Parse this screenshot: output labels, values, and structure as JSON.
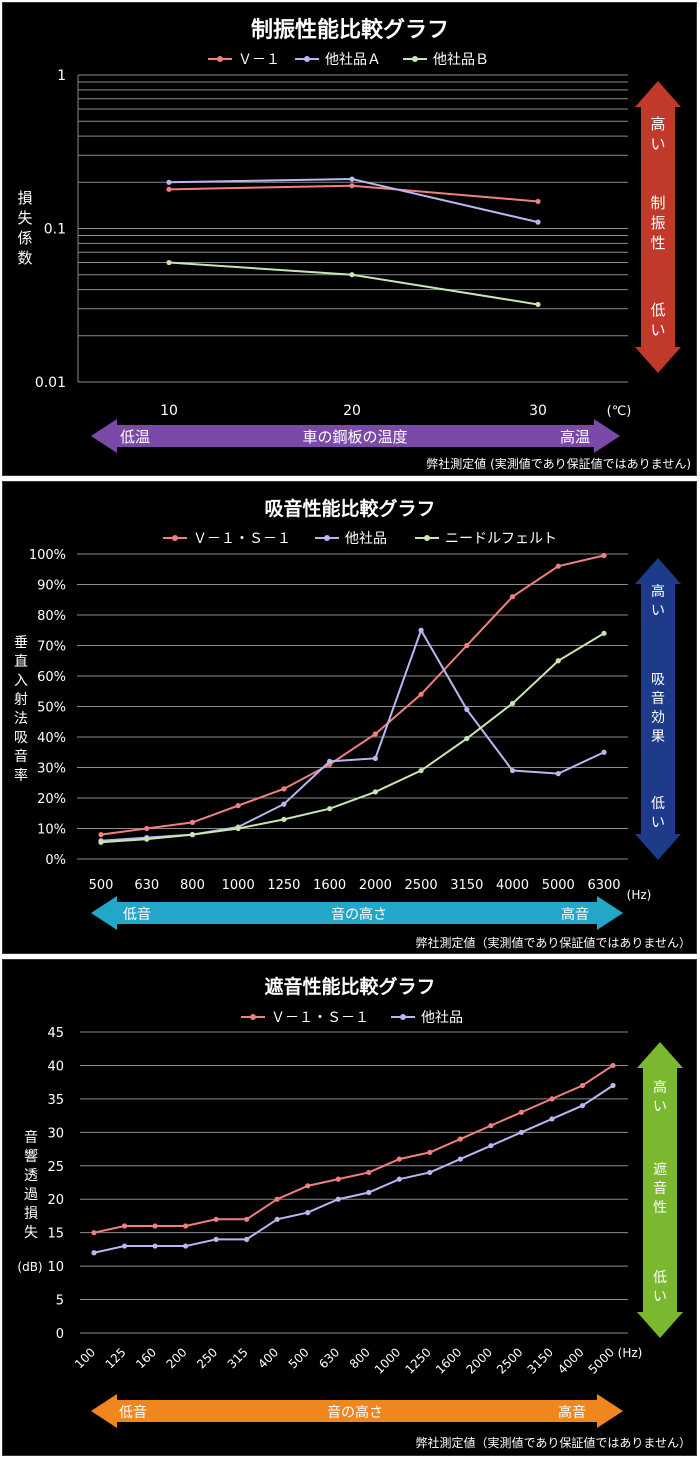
{
  "chart_data": [
    {
      "id": "damping",
      "type": "line",
      "title": "制振性能比較グラフ",
      "y_scale": "log",
      "ylim": [
        0.01,
        1
      ],
      "y_ticks": [
        {
          "v": 1,
          "label": "1"
        },
        {
          "v": 0.1,
          "label": "0.1"
        },
        {
          "v": 0.01,
          "label": "0.01"
        }
      ],
      "ylabel": "損失係数",
      "x_unit": "(℃)",
      "x": [
        10,
        20,
        30
      ],
      "x_labels": [
        "10",
        "20",
        "30"
      ],
      "series": [
        {
          "name": "Ｖ－１",
          "color": "#f08080",
          "values": [
            0.18,
            0.19,
            0.15
          ]
        },
        {
          "name": "他社品Ａ",
          "color": "#b8b8f0",
          "values": [
            0.2,
            0.21,
            0.11
          ]
        },
        {
          "name": "他社品Ｂ",
          "color": "#c8e6b0",
          "values": [
            0.06,
            0.05,
            0.032
          ]
        }
      ],
      "legend_position": "top",
      "grid": true,
      "arrow_x": {
        "left": "低温",
        "center": "車の鋼板の温度",
        "right": "高温",
        "color": "#7b4aa8"
      },
      "arrow_y": {
        "top": "高い",
        "center": "制振性",
        "bottom": "低い",
        "color": "#c0392b"
      },
      "note": "弊社測定値 (実測値であり保証値ではありません)"
    },
    {
      "id": "absorption",
      "type": "line",
      "title": "吸音性能比較グラフ",
      "ylim": [
        0,
        100
      ],
      "y_ticks": [
        {
          "v": 0,
          "label": "0%"
        },
        {
          "v": 10,
          "label": "10%"
        },
        {
          "v": 20,
          "label": "20%"
        },
        {
          "v": 30,
          "label": "30%"
        },
        {
          "v": 40,
          "label": "40%"
        },
        {
          "v": 50,
          "label": "50%"
        },
        {
          "v": 60,
          "label": "60%"
        },
        {
          "v": 70,
          "label": "70%"
        },
        {
          "v": 80,
          "label": "80%"
        },
        {
          "v": 90,
          "label": "90%"
        },
        {
          "v": 100,
          "label": "100%"
        }
      ],
      "ylabel": "垂直入射法吸音率",
      "x_unit": "(Hz)",
      "categories": [
        "500",
        "630",
        "800",
        "1000",
        "1250",
        "1600",
        "2000",
        "2500",
        "3150",
        "4000",
        "5000",
        "6300"
      ],
      "series": [
        {
          "name": "Ｖ－１・Ｓ－１",
          "color": "#f08080",
          "values": [
            8,
            10,
            12,
            17.5,
            23,
            31,
            41,
            54,
            70,
            86,
            96,
            99.5
          ]
        },
        {
          "name": "他社品",
          "color": "#b8b8f0",
          "values": [
            6,
            7,
            8,
            10.5,
            18,
            32,
            33,
            75,
            49,
            29,
            28,
            35
          ]
        },
        {
          "name": "ニードルフェルト",
          "color": "#c8e6b0",
          "values": [
            5.5,
            6.5,
            8,
            10,
            13,
            16.5,
            22,
            29,
            39.5,
            51,
            65,
            74
          ]
        }
      ],
      "legend_position": "top",
      "grid": true,
      "arrow_x": {
        "left": "低音",
        "center": "音の高さ",
        "right": "高音",
        "color": "#22a7c8"
      },
      "arrow_y": {
        "top": "高い",
        "center": "吸音効果",
        "bottom": "低い",
        "color": "#1e3b8a"
      },
      "note": "弊社測定値（実測値であり保証値ではありません）"
    },
    {
      "id": "insulation",
      "type": "line",
      "title": "遮音性能比較グラフ",
      "ylim": [
        0,
        45
      ],
      "y_ticks": [
        {
          "v": 0,
          "label": "0"
        },
        {
          "v": 5,
          "label": "5"
        },
        {
          "v": 10,
          "label": "10"
        },
        {
          "v": 15,
          "label": "15"
        },
        {
          "v": 20,
          "label": "20"
        },
        {
          "v": 25,
          "label": "25"
        },
        {
          "v": 30,
          "label": "30"
        },
        {
          "v": 35,
          "label": "35"
        },
        {
          "v": 40,
          "label": "40"
        },
        {
          "v": 45,
          "label": "45"
        }
      ],
      "ylabel": "音響透過損失",
      "yunit": "(dB)",
      "x_unit": "(Hz)",
      "categories": [
        "100",
        "125",
        "160",
        "200",
        "250",
        "315",
        "400",
        "500",
        "630",
        "800",
        "1000",
        "1250",
        "1600",
        "2000",
        "2500",
        "3150",
        "4000",
        "5000"
      ],
      "series": [
        {
          "name": "Ｖ－１・Ｓ－１",
          "color": "#f08080",
          "values": [
            15,
            16,
            16,
            16,
            17,
            17,
            20,
            22,
            23,
            24,
            26,
            27,
            29,
            31,
            33,
            35,
            37,
            40
          ]
        },
        {
          "name": "他社品",
          "color": "#b8b8f0",
          "values": [
            12,
            13,
            13,
            13,
            14,
            14,
            17,
            18,
            20,
            21,
            23,
            24,
            26,
            28,
            30,
            32,
            34,
            37
          ]
        }
      ],
      "legend_position": "top",
      "grid": true,
      "arrow_x": {
        "left": "低音",
        "center": "音の高さ",
        "right": "高音",
        "color": "#f0861e"
      },
      "arrow_y": {
        "top": "高い",
        "center": "遮音性",
        "bottom": "低い",
        "color": "#7ab830"
      },
      "note": "弊社測定値（実測値であり保証値ではありません）"
    }
  ]
}
